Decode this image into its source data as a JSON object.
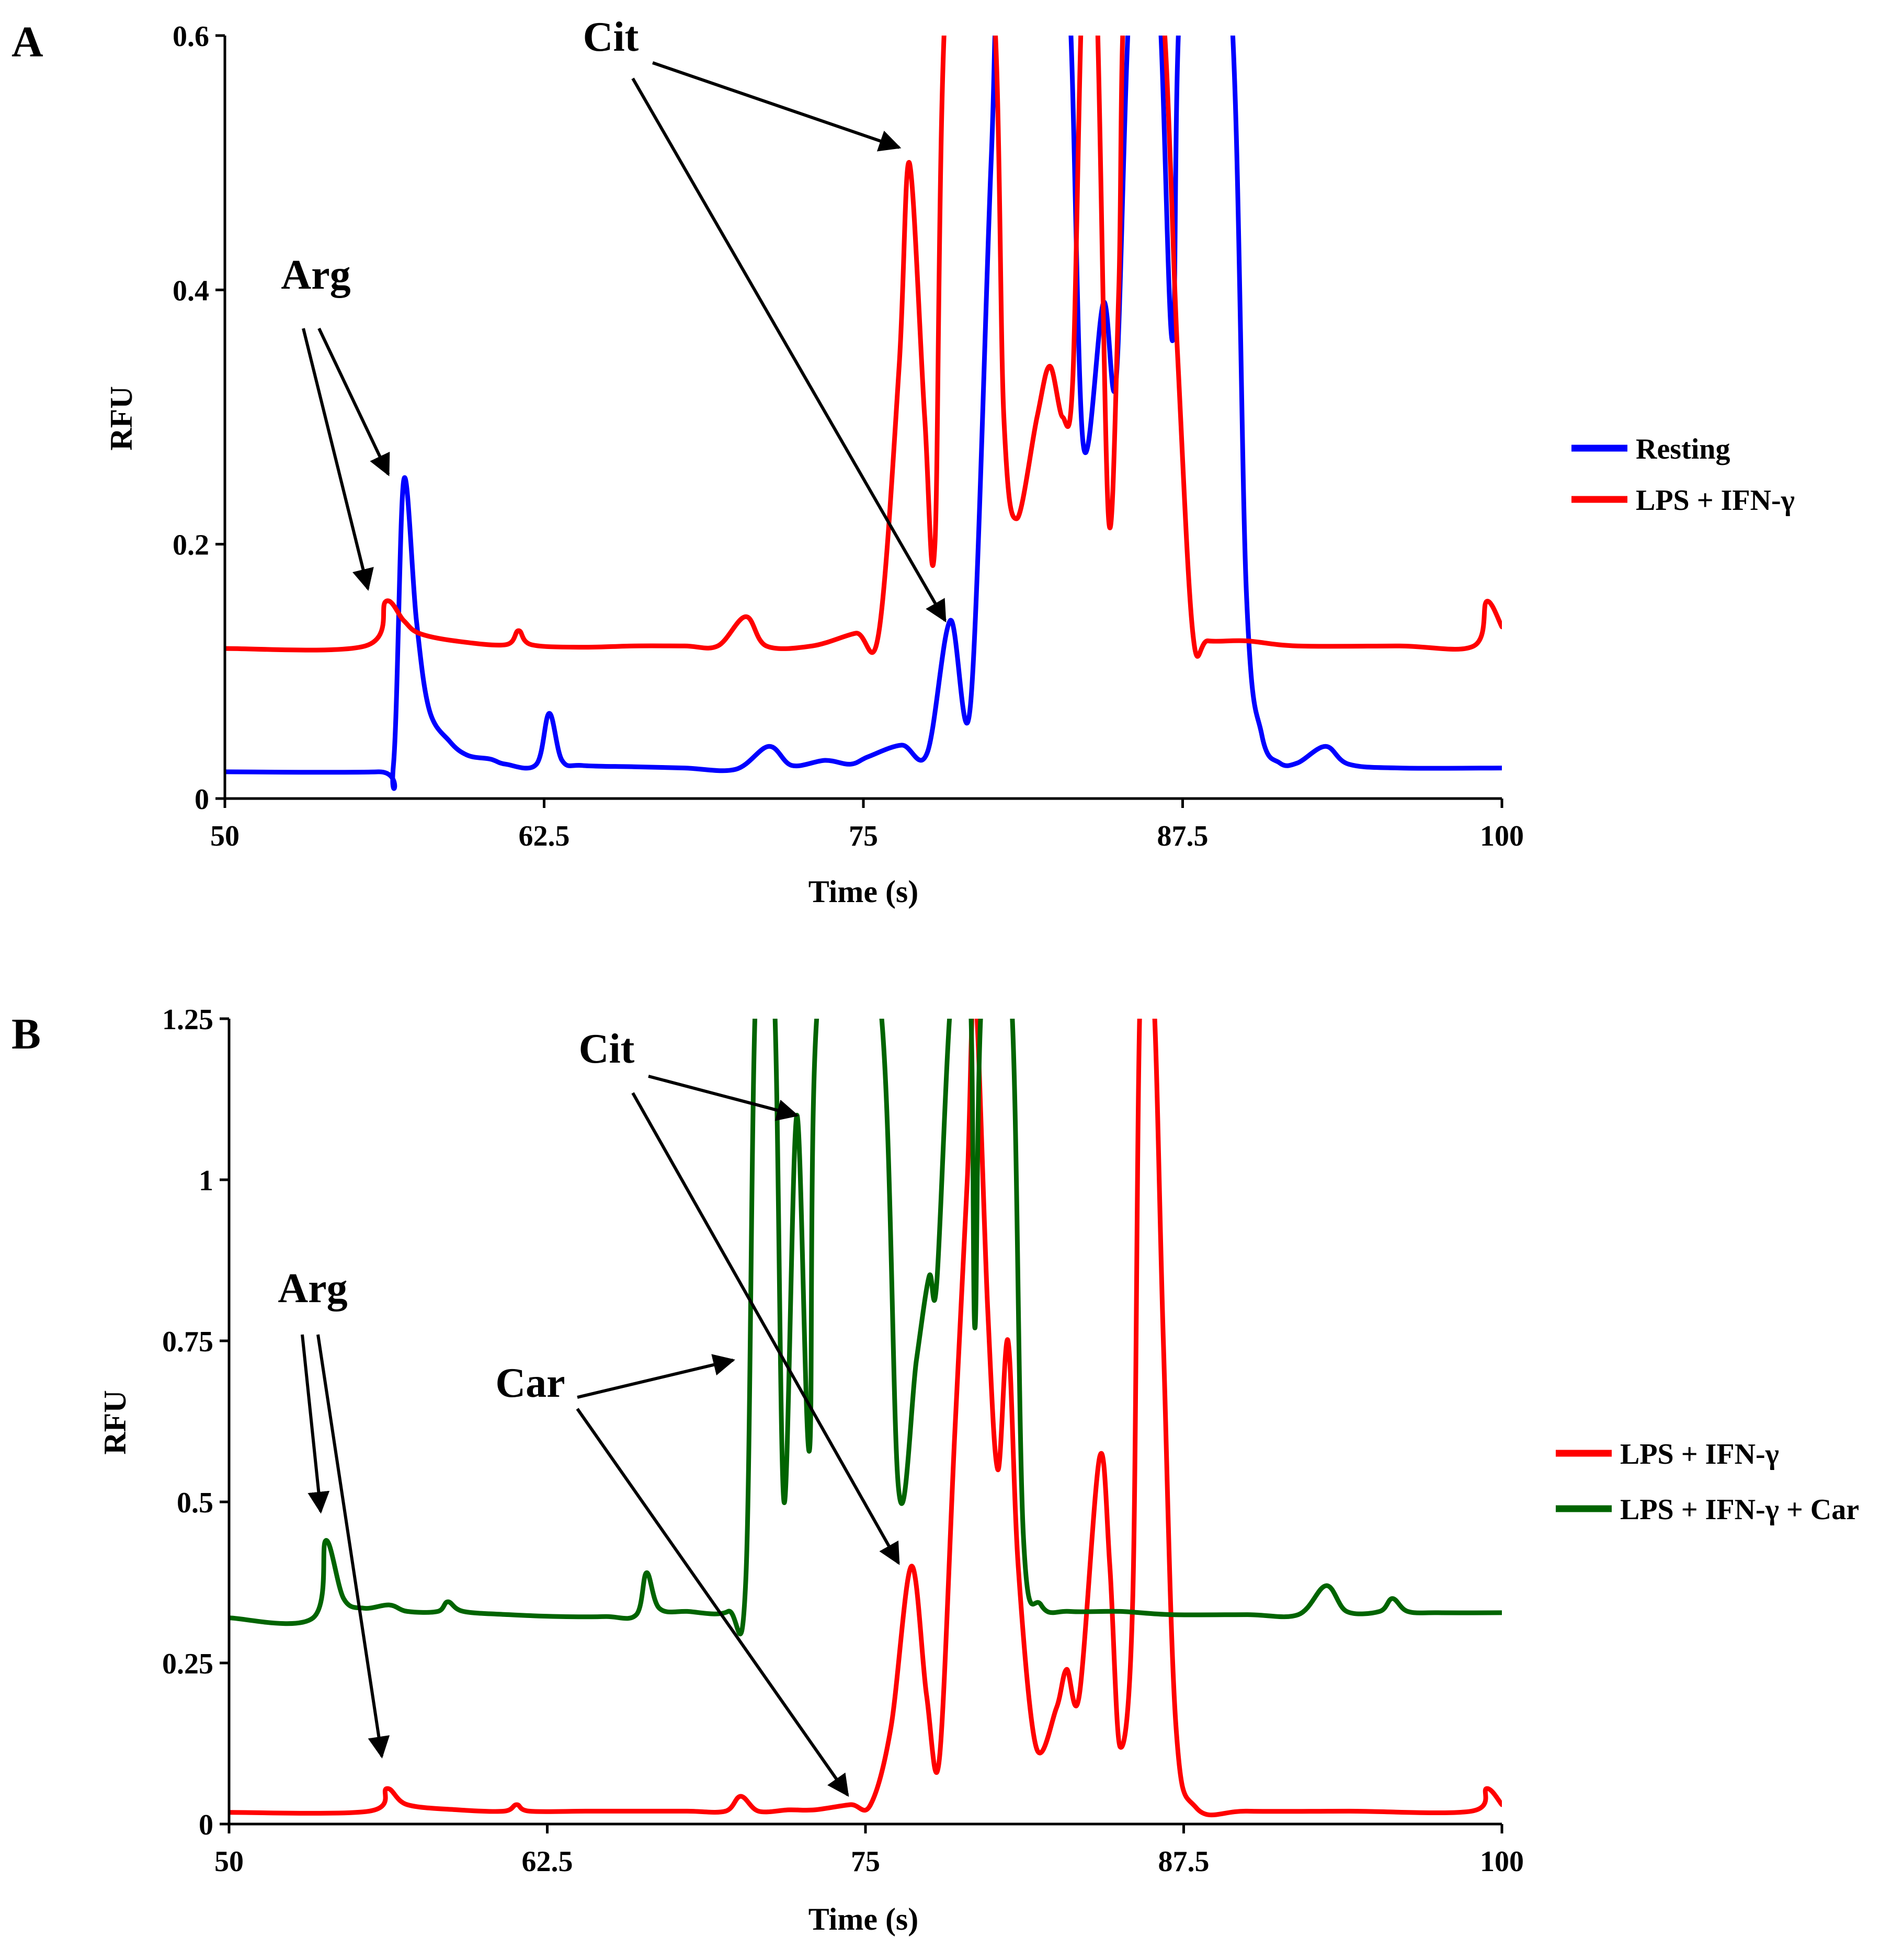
{
  "chart_data": [
    {
      "panel_label": "A",
      "type": "line",
      "title": "",
      "xlabel": "Time (s)",
      "ylabel": "RFU",
      "xlim": [
        50,
        100
      ],
      "ylim": [
        0,
        0.6
      ],
      "x_ticks": [
        50,
        62.5,
        75,
        87.5,
        100
      ],
      "x_tick_labels": [
        "50",
        "62.5",
        "75",
        "87.5",
        "100"
      ],
      "y_ticks": [
        0,
        0.2,
        0.4,
        0.6
      ],
      "y_tick_labels": [
        "0",
        "0.2",
        "0.4",
        "0.6"
      ],
      "grid": false,
      "legend_position": "right",
      "series": [
        {
          "name": "Resting",
          "color": "#0000ff",
          "baseline": 0.021,
          "points": [
            [
              50,
              0.021
            ],
            [
              56,
              0.021
            ],
            [
              56.6,
              0.026
            ],
            [
              57.0,
              0.25
            ],
            [
              57.5,
              0.14
            ],
            [
              58.0,
              0.07
            ],
            [
              58.8,
              0.045
            ],
            [
              59.5,
              0.034
            ],
            [
              60.4,
              0.031
            ],
            [
              61.0,
              0.027
            ],
            [
              62.2,
              0.027
            ],
            [
              62.7,
              0.067
            ],
            [
              63.2,
              0.03
            ],
            [
              64,
              0.026
            ],
            [
              66,
              0.025
            ],
            [
              68,
              0.024
            ],
            [
              70,
              0.023
            ],
            [
              71.3,
              0.041
            ],
            [
              72.2,
              0.026
            ],
            [
              73.5,
              0.03
            ],
            [
              74.5,
              0.027
            ],
            [
              75.2,
              0.033
            ],
            [
              76.5,
              0.042
            ],
            [
              77.5,
              0.036
            ],
            [
              78.4,
              0.14
            ],
            [
              79.2,
              0.075
            ],
            [
              80,
              0.5
            ],
            [
              80.4,
              0.65
            ],
            [
              82,
              0.65
            ],
            [
              83,
              0.65
            ],
            [
              83.6,
              0.28
            ],
            [
              84.4,
              0.39
            ],
            [
              84.9,
              0.33
            ],
            [
              85.5,
              0.65
            ],
            [
              86.5,
              0.65
            ],
            [
              87.1,
              0.36
            ],
            [
              87.5,
              0.65
            ],
            [
              89.3,
              0.65
            ],
            [
              90.0,
              0.16
            ],
            [
              90.6,
              0.05
            ],
            [
              91.3,
              0.028
            ],
            [
              92,
              0.028
            ],
            [
              93.1,
              0.041
            ],
            [
              94,
              0.027
            ],
            [
              96,
              0.024
            ],
            [
              100,
              0.024
            ]
          ]
        },
        {
          "name": "LPS + IFN-γ",
          "color": "#ff0000",
          "baseline": 0.118,
          "points": [
            [
              50,
              0.118
            ],
            [
              55.5,
              0.12
            ],
            [
              56.3,
              0.155
            ],
            [
              57,
              0.14
            ],
            [
              57.6,
              0.13
            ],
            [
              59,
              0.124
            ],
            [
              61,
              0.121
            ],
            [
              61.5,
              0.132
            ],
            [
              62,
              0.121
            ],
            [
              64,
              0.119
            ],
            [
              66,
              0.12
            ],
            [
              68,
              0.12
            ],
            [
              69.3,
              0.12
            ],
            [
              70.4,
              0.143
            ],
            [
              71.2,
              0.12
            ],
            [
              73,
              0.12
            ],
            [
              74.7,
              0.13
            ],
            [
              75.6,
              0.13
            ],
            [
              76.4,
              0.34
            ],
            [
              76.8,
              0.5
            ],
            [
              77.4,
              0.3
            ],
            [
              77.8,
              0.2
            ],
            [
              78.3,
              0.65
            ],
            [
              80,
              0.65
            ],
            [
              80.5,
              0.3
            ],
            [
              81,
              0.22
            ],
            [
              81.8,
              0.3
            ],
            [
              82.3,
              0.34
            ],
            [
              82.8,
              0.3
            ],
            [
              83.2,
              0.33
            ],
            [
              83.6,
              0.65
            ],
            [
              84.1,
              0.65
            ],
            [
              84.6,
              0.22
            ],
            [
              85,
              0.4
            ],
            [
              85.3,
              0.65
            ],
            [
              86.6,
              0.65
            ],
            [
              87.3,
              0.35
            ],
            [
              87.9,
              0.13
            ],
            [
              88.5,
              0.124
            ],
            [
              90,
              0.124
            ],
            [
              92,
              0.12
            ],
            [
              96,
              0.12
            ],
            [
              98.9,
              0.12
            ],
            [
              99.4,
              0.155
            ],
            [
              100,
              0.135
            ]
          ]
        }
      ],
      "annotations": [
        {
          "text": "Arg",
          "targets": [
            [
              55.6,
              0.165
            ],
            [
              56.4,
              0.255
            ]
          ]
        },
        {
          "text": "Cit",
          "targets": [
            [
              76.4,
              0.512
            ],
            [
              78.2,
              0.14
            ]
          ]
        }
      ]
    },
    {
      "panel_label": "B",
      "type": "line",
      "title": "",
      "xlabel": "Time (s)",
      "ylabel": "RFU",
      "xlim": [
        50,
        100
      ],
      "ylim": [
        0,
        1.25
      ],
      "x_ticks": [
        50,
        62.5,
        75,
        87.5,
        100
      ],
      "x_tick_labels": [
        "50",
        "62.5",
        "75",
        "87.5",
        "100"
      ],
      "y_ticks": [
        0,
        0.25,
        0.5,
        0.75,
        1,
        1.25
      ],
      "y_tick_labels": [
        "0",
        "0.25",
        "0.5",
        "0.75",
        "1",
        "1.25"
      ],
      "grid": false,
      "legend_position": "right",
      "series": [
        {
          "name": "LPS + IFN-γ",
          "color": "#ff0000",
          "points": [
            [
              50,
              0.018
            ],
            [
              55.5,
              0.02
            ],
            [
              56.2,
              0.055
            ],
            [
              57,
              0.03
            ],
            [
              59,
              0.022
            ],
            [
              60.8,
              0.02
            ],
            [
              61.3,
              0.03
            ],
            [
              61.8,
              0.02
            ],
            [
              64,
              0.02
            ],
            [
              66,
              0.02
            ],
            [
              68,
              0.02
            ],
            [
              69.5,
              0.02
            ],
            [
              70.1,
              0.043
            ],
            [
              70.8,
              0.02
            ],
            [
              72,
              0.022
            ],
            [
              73,
              0.022
            ],
            [
              74.4,
              0.03
            ],
            [
              75.2,
              0.03
            ],
            [
              76,
              0.15
            ],
            [
              76.8,
              0.4
            ],
            [
              77.4,
              0.2
            ],
            [
              77.9,
              0.1
            ],
            [
              78.5,
              0.6
            ],
            [
              79.0,
              1.0
            ],
            [
              79.3,
              1.3
            ],
            [
              79.8,
              0.8
            ],
            [
              80.2,
              0.55
            ],
            [
              80.6,
              0.75
            ],
            [
              81,
              0.4
            ],
            [
              81.7,
              0.12
            ],
            [
              82.5,
              0.18
            ],
            [
              82.9,
              0.24
            ],
            [
              83.4,
              0.2
            ],
            [
              84.2,
              0.57
            ],
            [
              84.6,
              0.4
            ],
            [
              85.0,
              0.12
            ],
            [
              85.5,
              0.35
            ],
            [
              85.8,
              1.3
            ],
            [
              86.3,
              1.3
            ],
            [
              86.7,
              0.75
            ],
            [
              87.2,
              0.15
            ],
            [
              88,
              0.025
            ],
            [
              90,
              0.02
            ],
            [
              94,
              0.02
            ],
            [
              98.8,
              0.02
            ],
            [
              99.4,
              0.055
            ],
            [
              100,
              0.03
            ]
          ]
        },
        {
          "name": "LPS + IFN-γ + Car",
          "color": "#006400",
          "points": [
            [
              50,
              0.32
            ],
            [
              53.3,
              0.32
            ],
            [
              53.8,
              0.44
            ],
            [
              54.5,
              0.35
            ],
            [
              55.3,
              0.335
            ],
            [
              56.3,
              0.34
            ],
            [
              57,
              0.33
            ],
            [
              58.2,
              0.33
            ],
            [
              58.6,
              0.345
            ],
            [
              59.2,
              0.33
            ],
            [
              61,
              0.325
            ],
            [
              63,
              0.322
            ],
            [
              64.8,
              0.322
            ],
            [
              66,
              0.325
            ],
            [
              66.4,
              0.39
            ],
            [
              66.9,
              0.335
            ],
            [
              68,
              0.33
            ],
            [
              69.6,
              0.33
            ],
            [
              70.3,
              0.38
            ],
            [
              70.7,
              1.3
            ],
            [
              71.4,
              1.3
            ],
            [
              71.8,
              0.5
            ],
            [
              72.3,
              1.1
            ],
            [
              72.8,
              0.58
            ],
            [
              73.2,
              1.3
            ],
            [
              75.5,
              1.3
            ],
            [
              76.3,
              0.52
            ],
            [
              77.0,
              0.72
            ],
            [
              77.5,
              0.85
            ],
            [
              77.8,
              0.84
            ],
            [
              78.4,
              1.3
            ],
            [
              79.1,
              1.3
            ],
            [
              79.3,
              0.77
            ],
            [
              79.6,
              1.3
            ],
            [
              80.7,
              1.3
            ],
            [
              81.2,
              0.45
            ],
            [
              81.9,
              0.34
            ],
            [
              83,
              0.33
            ],
            [
              85,
              0.33
            ],
            [
              87,
              0.325
            ],
            [
              90,
              0.325
            ],
            [
              92,
              0.325
            ],
            [
              93.1,
              0.37
            ],
            [
              93.9,
              0.33
            ],
            [
              95.2,
              0.33
            ],
            [
              95.7,
              0.35
            ],
            [
              96.3,
              0.33
            ],
            [
              97.5,
              0.328
            ],
            [
              100,
              0.328
            ]
          ]
        }
      ],
      "annotations": [
        {
          "text": "Arg",
          "targets": [
            [
              53.6,
              0.485
            ],
            [
              56.0,
              0.105
            ]
          ]
        },
        {
          "text": "Cit",
          "targets": [
            [
              72.3,
              1.1
            ],
            [
              76.3,
              0.405
            ]
          ]
        },
        {
          "text": "Car",
          "targets": [
            [
              69.8,
              0.72
            ],
            [
              74.3,
              0.045
            ]
          ]
        }
      ]
    }
  ]
}
